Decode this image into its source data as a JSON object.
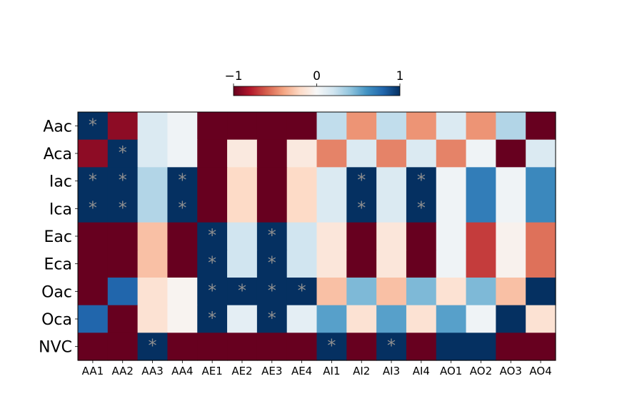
{
  "chart_data": {
    "type": "heatmap",
    "title": "",
    "xlabel": "",
    "ylabel": "",
    "colormap": "RdBu",
    "vmin": -1,
    "vmax": 1,
    "colorbar": {
      "placement": "top",
      "ticks": [
        -1,
        0,
        1
      ],
      "tick_labels": [
        "−1",
        "0",
        "1"
      ]
    },
    "x_labels": [
      "AA1",
      "AA2",
      "AA3",
      "AA4",
      "AE1",
      "AE2",
      "AE3",
      "AE4",
      "AI1",
      "AI2",
      "AI3",
      "AI4",
      "AO1",
      "AO2",
      "AO3",
      "AO4"
    ],
    "y_labels": [
      "Aac",
      "Aca",
      "Iac",
      "Ica",
      "Eac",
      "Eca",
      "Oac",
      "Oca",
      "NVC"
    ],
    "values": [
      [
        1.0,
        -0.9,
        0.15,
        0.04,
        -1.0,
        -1.0,
        -1.0,
        -1.0,
        0.25,
        -0.45,
        0.25,
        -0.45,
        0.15,
        -0.45,
        0.3,
        -1.0
      ],
      [
        -0.9,
        1.0,
        0.15,
        0.04,
        -1.0,
        -0.1,
        -1.0,
        -0.1,
        -0.5,
        0.15,
        -0.5,
        0.15,
        -0.5,
        0.04,
        -1.0,
        0.15
      ],
      [
        1.0,
        1.0,
        0.3,
        1.0,
        -1.0,
        -0.2,
        -1.0,
        -0.2,
        0.15,
        1.0,
        0.15,
        1.0,
        0.04,
        0.7,
        0.04,
        0.65
      ],
      [
        1.0,
        1.0,
        0.3,
        1.0,
        -1.0,
        -0.2,
        -1.0,
        -0.2,
        0.15,
        1.0,
        0.15,
        1.0,
        0.04,
        0.7,
        0.04,
        0.65
      ],
      [
        -1.0,
        -1.0,
        -0.3,
        -1.0,
        1.0,
        0.2,
        1.0,
        0.2,
        -0.12,
        -1.0,
        -0.12,
        -1.0,
        0.04,
        -0.7,
        -0.04,
        -0.55
      ],
      [
        -1.0,
        -1.0,
        -0.3,
        -1.0,
        1.0,
        0.2,
        1.0,
        0.2,
        -0.12,
        -1.0,
        -0.12,
        -1.0,
        0.04,
        -0.7,
        -0.04,
        -0.55
      ],
      [
        -1.0,
        0.8,
        -0.15,
        -0.03,
        1.0,
        1.0,
        1.0,
        1.0,
        -0.3,
        0.45,
        -0.3,
        0.45,
        -0.15,
        0.45,
        -0.3,
        1.0
      ],
      [
        0.8,
        -1.0,
        -0.15,
        -0.03,
        1.0,
        0.1,
        1.0,
        0.1,
        0.55,
        -0.15,
        0.55,
        -0.15,
        0.55,
        0.04,
        1.0,
        -0.15
      ],
      [
        -1.0,
        -1.0,
        1.0,
        -1.0,
        -1.0,
        -1.0,
        -1.0,
        -1.0,
        1.0,
        -1.0,
        1.0,
        -1.0,
        1.0,
        1.0,
        -1.0,
        -1.0
      ]
    ],
    "significance_marker": "*",
    "significant_cells": [
      [
        0,
        0
      ],
      [
        1,
        1
      ],
      [
        2,
        0
      ],
      [
        2,
        1
      ],
      [
        2,
        3
      ],
      [
        2,
        9
      ],
      [
        2,
        11
      ],
      [
        3,
        0
      ],
      [
        3,
        1
      ],
      [
        3,
        3
      ],
      [
        3,
        9
      ],
      [
        3,
        11
      ],
      [
        4,
        4
      ],
      [
        4,
        6
      ],
      [
        5,
        4
      ],
      [
        5,
        6
      ],
      [
        6,
        4
      ],
      [
        6,
        5
      ],
      [
        6,
        6
      ],
      [
        6,
        7
      ],
      [
        7,
        4
      ],
      [
        7,
        6
      ],
      [
        8,
        2
      ],
      [
        8,
        8
      ],
      [
        8,
        10
      ]
    ]
  }
}
